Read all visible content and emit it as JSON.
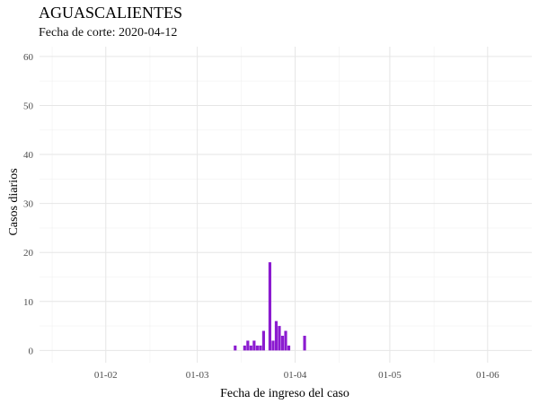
{
  "chart_data": {
    "type": "bar",
    "title": "AGUASCALIENTES",
    "subtitle": "Fecha de corte: 2020-04-12",
    "xlabel": "Fecha de ingreso del caso",
    "ylabel": "Casos diarios",
    "x_range": [
      "2020-01-11",
      "2020-06-15"
    ],
    "ylim": [
      -2.5,
      62
    ],
    "y_ticks": [
      0,
      10,
      20,
      30,
      40,
      50,
      60
    ],
    "x_ticks": [
      {
        "date": "2020-02-01",
        "label": "01-02"
      },
      {
        "date": "2020-03-01",
        "label": "01-03"
      },
      {
        "date": "2020-04-01",
        "label": "01-04"
      },
      {
        "date": "2020-05-01",
        "label": "01-05"
      },
      {
        "date": "2020-06-01",
        "label": "01-06"
      }
    ],
    "x_minor_ticks": [
      "2020-01-15",
      "2020-02-15",
      "2020-03-15",
      "2020-04-15",
      "2020-05-15"
    ],
    "grid": true,
    "bar_color": "#8B1BD0",
    "points": [
      {
        "date": "2020-03-13",
        "value": 1
      },
      {
        "date": "2020-03-16",
        "value": 1
      },
      {
        "date": "2020-03-17",
        "value": 2
      },
      {
        "date": "2020-03-18",
        "value": 1
      },
      {
        "date": "2020-03-19",
        "value": 2
      },
      {
        "date": "2020-03-20",
        "value": 1
      },
      {
        "date": "2020-03-21",
        "value": 1
      },
      {
        "date": "2020-03-22",
        "value": 4
      },
      {
        "date": "2020-03-24",
        "value": 18
      },
      {
        "date": "2020-03-25",
        "value": 2
      },
      {
        "date": "2020-03-26",
        "value": 6
      },
      {
        "date": "2020-03-27",
        "value": 5
      },
      {
        "date": "2020-03-28",
        "value": 3
      },
      {
        "date": "2020-03-29",
        "value": 4
      },
      {
        "date": "2020-03-30",
        "value": 1
      },
      {
        "date": "2020-04-04",
        "value": 3
      }
    ]
  }
}
